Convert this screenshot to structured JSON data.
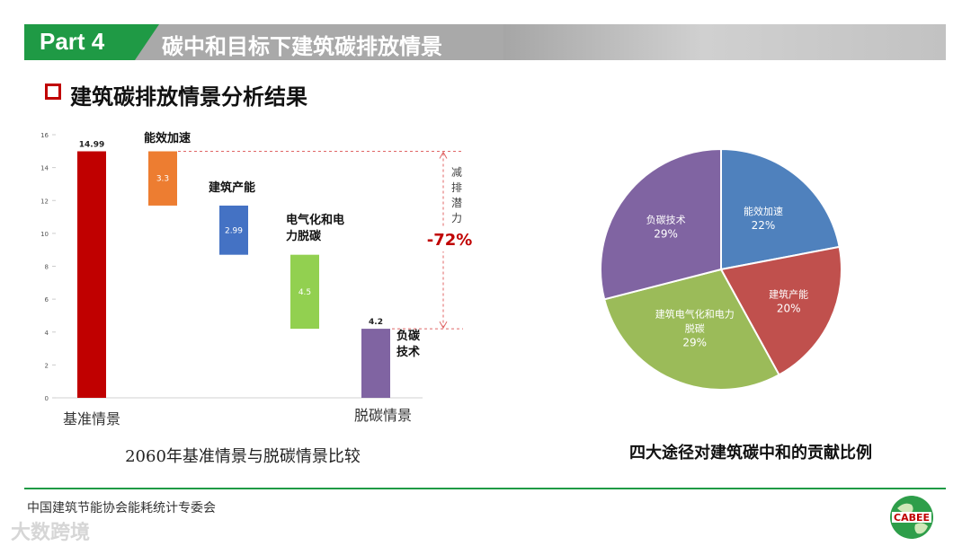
{
  "header": {
    "part": "Part 4",
    "title": "碳中和目标下建筑碳排放情景"
  },
  "section": {
    "title": "建筑碳排放情景分析结果"
  },
  "chart_data": [
    {
      "type": "bar",
      "subtype": "waterfall",
      "title": "2060年基准情景与脱碳情景比较",
      "ylim": [
        0,
        16
      ],
      "yticks": [
        0,
        2,
        4,
        6,
        8,
        10,
        12,
        14,
        16
      ],
      "xlabels": [
        "基准情景",
        "脱碳情景"
      ],
      "bars": [
        {
          "label": "基准情景",
          "base": 0,
          "value": 14.99,
          "color": "#c00000",
          "value_label": "14.99",
          "label_pos": "top"
        },
        {
          "label": "能效加速",
          "base": 11.69,
          "value": 3.3,
          "color": "#ed7d31",
          "value_label": "3.3",
          "label_pos": "inside"
        },
        {
          "label": "建筑产能",
          "base": 8.7,
          "value": 2.99,
          "color": "#4472c4",
          "value_label": "2.99",
          "label_pos": "inside"
        },
        {
          "label": "电气化和电力脱碳",
          "base": 4.2,
          "value": 4.5,
          "color": "#92d050",
          "value_label": "4.5",
          "label_pos": "inside"
        },
        {
          "label": "负碳技术",
          "base": 0,
          "value": 4.2,
          "color": "#8064a2",
          "value_label": "4.2",
          "label_pos": "top"
        }
      ],
      "annotations": {
        "energy_efficiency": "能效加速",
        "building_generation": "建筑产能",
        "electrification_line1": "电气化和电",
        "electrification_line2": "力脱碳",
        "negative_carbon_line1": "负碳",
        "negative_carbon_line2": "技术",
        "reduction_chars": [
          "减",
          "排",
          "潜",
          "力"
        ],
        "reduction_pct": "-72%"
      }
    },
    {
      "type": "pie",
      "title": "四大途径对建筑碳中和的贡献比例",
      "slices": [
        {
          "label": "能效加速",
          "value": 22,
          "pct": "22%",
          "color": "#4f81bd"
        },
        {
          "label": "建筑产能",
          "value": 20,
          "pct": "20%",
          "color": "#c0504d"
        },
        {
          "label": "建筑电气化和电力脱碳",
          "value": 29,
          "pct": "29%",
          "color": "#9bbb59"
        },
        {
          "label": "负碳技术",
          "value": 29,
          "pct": "29%",
          "color": "#8064a2"
        }
      ],
      "label_lines": {
        "electrification_line1": "建筑电气化和电力",
        "electrification_line2": "脱碳"
      }
    }
  ],
  "footer": {
    "org": "中国建筑节能协会能耗统计专委会",
    "logo_text": "CABEE",
    "watermark": "大数跨境"
  },
  "colors": {
    "accent_green": "#1f9a45",
    "accent_red": "#c00000"
  }
}
